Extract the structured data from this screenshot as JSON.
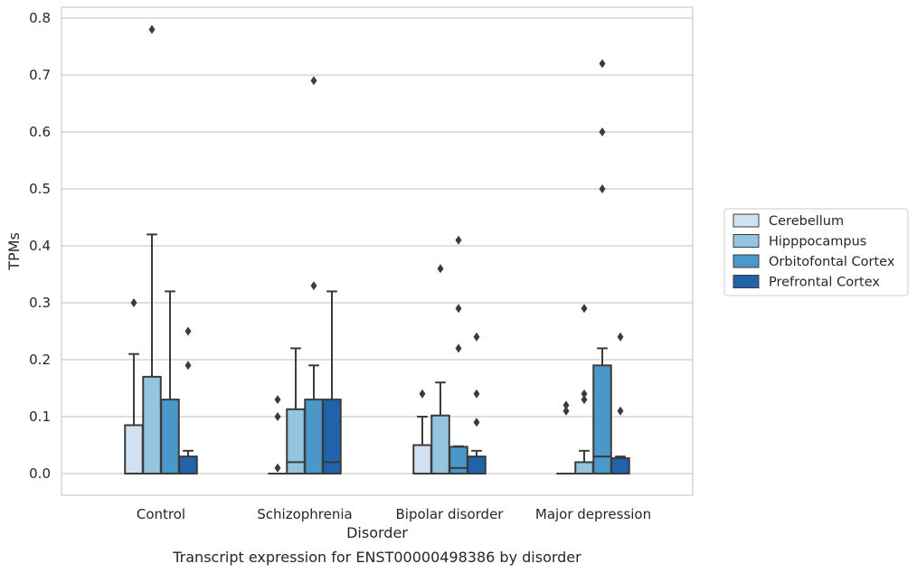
{
  "caption": "Transcript expression for ENST00000498386 by disorder",
  "chart_data": {
    "type": "box",
    "xlabel": "Disorder",
    "ylabel": "TPMs",
    "ylim": [
      -0.04,
      0.82
    ],
    "yticks": [
      "0.0",
      "0.1",
      "0.2",
      "0.3",
      "0.4",
      "0.5",
      "0.6",
      "0.7",
      "0.8"
    ],
    "grid": "horizontal",
    "legend_position": "right",
    "categories": [
      "Control",
      "Schizophrenia",
      "Bipolar disorder",
      "Major depression"
    ],
    "series": [
      {
        "name": "Cerebellum",
        "color": "#d0e1f2",
        "boxes": [
          {
            "min": 0,
            "q1": 0,
            "median": 0,
            "q3": 0.085,
            "max": 0.21,
            "outliers": [
              0.3
            ]
          },
          {
            "min": 0,
            "q1": 0,
            "median": 0,
            "q3": 0,
            "max": 0,
            "outliers": [
              0.01,
              0.1,
              0.13
            ]
          },
          {
            "min": 0,
            "q1": 0,
            "median": 0,
            "q3": 0.05,
            "max": 0.1,
            "outliers": [
              0.14
            ]
          },
          {
            "min": 0,
            "q1": 0,
            "median": 0,
            "q3": 0,
            "max": 0,
            "outliers": [
              0.11,
              0.12
            ]
          }
        ]
      },
      {
        "name": "Hipppocampus",
        "color": "#94c4df",
        "boxes": [
          {
            "min": 0,
            "q1": 0,
            "median": 0,
            "q3": 0.17,
            "max": 0.42,
            "outliers": [
              0.78
            ]
          },
          {
            "min": 0,
            "q1": 0,
            "median": 0.02,
            "q3": 0.113,
            "max": 0.22,
            "outliers": []
          },
          {
            "min": 0,
            "q1": 0,
            "median": 0,
            "q3": 0.102,
            "max": 0.16,
            "outliers": [
              0.36
            ]
          },
          {
            "min": 0,
            "q1": 0,
            "median": 0,
            "q3": 0.02,
            "max": 0.04,
            "outliers": [
              0.13,
              0.14,
              0.29
            ]
          }
        ]
      },
      {
        "name": "Orbitofontal Cortex",
        "color": "#4a98c9",
        "boxes": [
          {
            "min": 0,
            "q1": 0,
            "median": 0,
            "q3": 0.13,
            "max": 0.32,
            "outliers": []
          },
          {
            "min": 0,
            "q1": 0,
            "median": 0,
            "q3": 0.13,
            "max": 0.19,
            "outliers": [
              0.33,
              0.69
            ]
          },
          {
            "min": 0,
            "q1": 0,
            "median": 0.01,
            "q3": 0.047,
            "max": 0.048,
            "outliers": [
              0.22,
              0.29,
              0.41
            ]
          },
          {
            "min": 0,
            "q1": 0,
            "median": 0.03,
            "q3": 0.19,
            "max": 0.22,
            "outliers": [
              0.5,
              0.6,
              0.72
            ]
          }
        ]
      },
      {
        "name": "Prefrontal Cortex",
        "color": "#2163aa",
        "boxes": [
          {
            "min": 0,
            "q1": 0,
            "median": 0,
            "q3": 0.03,
            "max": 0.04,
            "outliers": [
              0.19,
              0.25
            ]
          },
          {
            "min": 0,
            "q1": 0,
            "median": 0.02,
            "q3": 0.13,
            "max": 0.32,
            "outliers": []
          },
          {
            "min": 0,
            "q1": 0,
            "median": 0,
            "q3": 0.03,
            "max": 0.04,
            "outliers": [
              0.09,
              0.14,
              0.24
            ]
          },
          {
            "min": 0,
            "q1": 0,
            "median": 0,
            "q3": 0.027,
            "max": 0.03,
            "outliers": [
              0.11,
              0.24
            ]
          }
        ]
      }
    ]
  }
}
